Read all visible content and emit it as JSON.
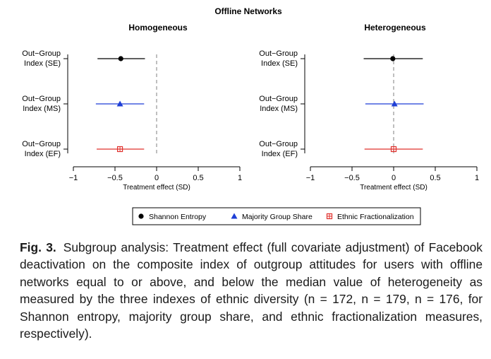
{
  "chart_data": {
    "type": "scatter",
    "title": "Offline Networks",
    "xlim": [
      -1,
      1
    ],
    "x_ticks": [
      "−1",
      "−0.5",
      "0",
      "0.5",
      "1"
    ],
    "xlabel": "Treatment effect (SD)",
    "reference_line": 0,
    "legend": {
      "placement": "bottom-center",
      "entries": [
        {
          "name": "Shannon Entropy",
          "marker": "circle",
          "color": "#000000"
        },
        {
          "name": "Majority Group Share",
          "marker": "triangle",
          "color": "#1f3fd6"
        },
        {
          "name": "Ethnic Fractionalization",
          "marker": "boxed-plus",
          "color": "#e0302c"
        }
      ]
    },
    "categories": [
      "Out−Group Index (SE)",
      "Out−Group Index (MS)",
      "Out−Group Index (EF)"
    ],
    "category_lines": [
      [
        "Out−Group",
        "Index (SE)"
      ],
      [
        "Out−Group",
        "Index (MS)"
      ],
      [
        "Out−Group",
        "Index (EF)"
      ]
    ],
    "panels": [
      {
        "title": "Homogeneous",
        "series": [
          {
            "name": "Shannon Entropy",
            "category": "Out−Group Index (SE)",
            "estimate": -0.43,
            "ci": [
              -0.71,
              -0.14
            ]
          },
          {
            "name": "Majority Group Share",
            "category": "Out−Group Index (MS)",
            "estimate": -0.44,
            "ci": [
              -0.73,
              -0.15
            ]
          },
          {
            "name": "Ethnic Fractionalization",
            "category": "Out−Group Index (EF)",
            "estimate": -0.44,
            "ci": [
              -0.72,
              -0.15
            ]
          }
        ]
      },
      {
        "title": "Heterogeneous",
        "series": [
          {
            "name": "Shannon Entropy",
            "category": "Out−Group Index (SE)",
            "estimate": -0.01,
            "ci": [
              -0.36,
              0.35
            ]
          },
          {
            "name": "Majority Group Share",
            "category": "Out−Group Index (MS)",
            "estimate": 0.01,
            "ci": [
              -0.34,
              0.36
            ]
          },
          {
            "name": "Ethnic Fractionalization",
            "category": "Out−Group Index (EF)",
            "estimate": 0.0,
            "ci": [
              -0.35,
              0.35
            ]
          }
        ]
      }
    ]
  },
  "caption": {
    "label": "Fig. 3.",
    "text": "Subgroup analysis: Treatment effect (full covariate adjustment) of Facebook deactivation on the composite index of outgroup attitudes for users with offline networks equal to or above, and below the median value of heterogeneity as measured by the three indexes of ethnic diversity (n = 172, n = 179, n = 176, for Shannon entropy, majority group share, and ethnic fractionalization measures, respectively)."
  }
}
